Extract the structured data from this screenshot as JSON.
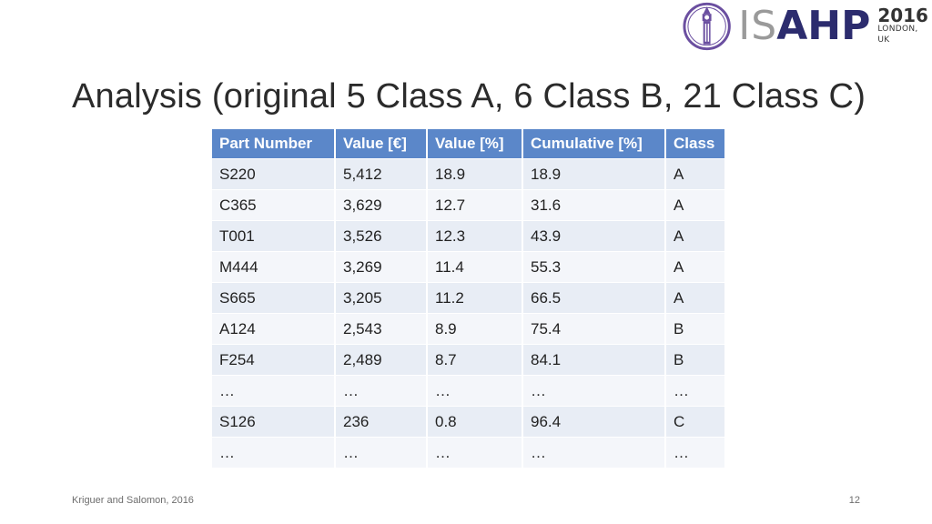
{
  "logo": {
    "brand_i": "I",
    "brand_s": "S",
    "brand_ahp": "AHP",
    "year": "2016",
    "city": "LONDON, UK",
    "emblem_icon": "big-ben-emblem-icon"
  },
  "slide": {
    "title": "Analysis (original 5 Class A, 6 Class B, 21 Class C)"
  },
  "table": {
    "headers": [
      "Part Number",
      "Value [€]",
      "Value [%]",
      "Cumulative [%]",
      "Class"
    ],
    "rows": [
      [
        "S220",
        "5,412",
        "18.9",
        "18.9",
        "A"
      ],
      [
        "C365",
        "3,629",
        "12.7",
        "31.6",
        "A"
      ],
      [
        "T001",
        "3,526",
        "12.3",
        "43.9",
        "A"
      ],
      [
        "M444",
        "3,269",
        "11.4",
        "55.3",
        "A"
      ],
      [
        "S665",
        "3,205",
        "11.2",
        "66.5",
        "A"
      ],
      [
        "A124",
        "2,543",
        "8.9",
        "75.4",
        "B"
      ],
      [
        "F254",
        "2,489",
        "8.7",
        "84.1",
        "B"
      ],
      [
        "…",
        "…",
        "…",
        "…",
        "…"
      ],
      [
        "S126",
        "236",
        "0.8",
        "96.4",
        "C"
      ],
      [
        "…",
        "…",
        "…",
        "…",
        "…"
      ]
    ]
  },
  "footer": {
    "authors": "Kriguer and Salomon, 2016",
    "page_number": "12"
  },
  "colors": {
    "header_bg": "#5b87c9",
    "row_odd": "#e8edf5",
    "row_even": "#f4f6fa",
    "logo_purple": "#6b4fa0",
    "logo_navy": "#2c2c6e"
  }
}
